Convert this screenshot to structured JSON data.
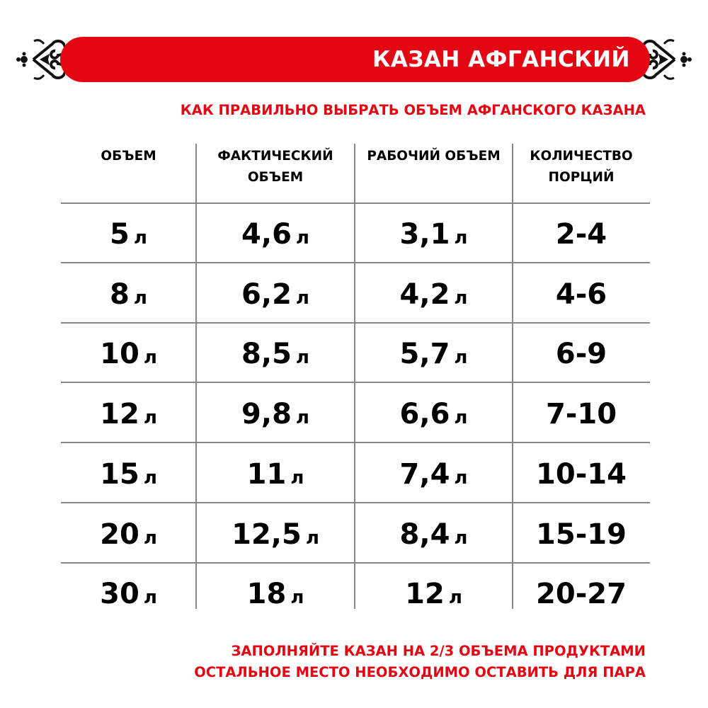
{
  "header": {
    "title": "КАЗАН АФГАНСКИЙ",
    "subtitle": "КАК ПРАВИЛЬНО ВЫБРАТЬ ОБЪЕМ АФГАНСКОГО КАЗАНА",
    "accent_color": "#e30613",
    "ornament_icon": "scroll-ornament"
  },
  "table": {
    "columns": [
      "ОБЪЕМ",
      "ФАКТИЧЕСКИЙ ОБЪЕМ",
      "РАБОЧИЙ ОБЪЕМ",
      "КОЛИЧЕСТВО ПОРЦИЙ"
    ],
    "unit": "л",
    "rows": [
      [
        "5",
        "4,6",
        "3,1",
        "2-4"
      ],
      [
        "8",
        "6,2",
        "4,2",
        "4-6"
      ],
      [
        "10",
        "8,5",
        "5,7",
        "6-9"
      ],
      [
        "12",
        "9,8",
        "6,6",
        "7-10"
      ],
      [
        "15",
        "11",
        "7,4",
        "10-14"
      ],
      [
        "20",
        "12,5",
        "8,4",
        "15-19"
      ],
      [
        "30",
        "18",
        "12",
        "20-27"
      ]
    ]
  },
  "footer": {
    "line1": "ЗАПОЛНЯЙТЕ КАЗАН НА 2/3 ОБЪЕМА ПРОДУКТАМИ",
    "line2": "ОСТАЛЬНОЕ МЕСТО НЕОБХОДИМО ОСТАВИТЬ ДЛЯ ПАРА"
  }
}
